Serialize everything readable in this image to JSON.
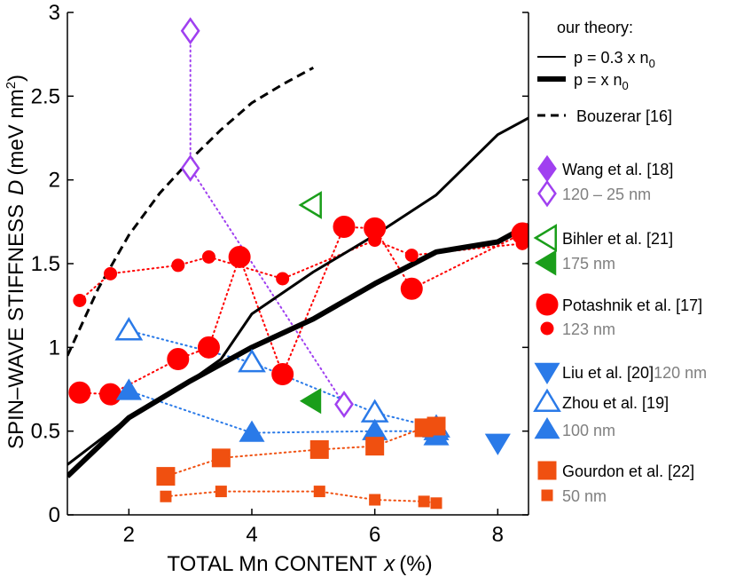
{
  "chart_data": {
    "type": "scatter",
    "xlabel": {
      "main": "TOTAL Mn CONTENT",
      "var": "x",
      "unit": "(%)"
    },
    "ylabel": {
      "main": "SPIN–WAVE STIFFNESS",
      "var": "D",
      "unit_pre": "(meV nm",
      "unit_sup": "2",
      "unit_post": ")"
    },
    "xlim": [
      1,
      8.5
    ],
    "ylim": [
      0,
      3
    ],
    "xticks": [
      2,
      4,
      6,
      8
    ],
    "yticks": [
      0,
      0.5,
      1,
      1.5,
      2,
      2.5,
      3
    ],
    "ytick_labels": [
      "0",
      "0.5",
      "1",
      "1.5",
      "2",
      "2.5",
      "3"
    ],
    "xtick_labels": [
      "2",
      "4",
      "6",
      "8"
    ],
    "lines": [
      {
        "name": "p = 0.3 x n0",
        "style": "thin",
        "color": "#000000",
        "x": [
          1.0,
          2.0,
          3.0,
          3.5,
          4.0,
          5.0,
          6.0,
          7.0,
          8.0,
          8.5
        ],
        "y": [
          0.3,
          0.58,
          0.8,
          0.93,
          1.2,
          1.45,
          1.67,
          1.91,
          2.27,
          2.37
        ]
      },
      {
        "name": "p = x n0",
        "style": "thick",
        "color": "#000000",
        "x": [
          1.0,
          2.0,
          3.0,
          4.0,
          5.0,
          6.0,
          7.0,
          8.0,
          8.5
        ],
        "y": [
          0.23,
          0.58,
          0.8,
          1.0,
          1.17,
          1.38,
          1.57,
          1.63,
          1.73
        ]
      },
      {
        "name": "Bouzerar [16]",
        "style": "dashed",
        "color": "#000000",
        "x": [
          1.0,
          1.5,
          2.0,
          2.5,
          3.0,
          3.5,
          4.0,
          4.5,
          5.0
        ],
        "y": [
          0.95,
          1.35,
          1.67,
          1.92,
          2.12,
          2.3,
          2.46,
          2.57,
          2.67
        ]
      }
    ],
    "series": [
      {
        "name": "Wang et al. [18]",
        "marker": "diamond",
        "fill": "filled",
        "color": "#a040f0",
        "size": 12,
        "connect": false,
        "x": [
          3.0
        ],
        "y": [
          2.89
        ]
      },
      {
        "name": "120 – 25 nm",
        "marker": "diamond",
        "fill": "open",
        "color": "#a040f0",
        "size": 11,
        "connect": true,
        "x": [
          3.0,
          3.0,
          5.5
        ],
        "y": [
          2.89,
          2.07,
          0.66
        ]
      },
      {
        "name": "Bihler et al. [21]",
        "marker": "triangle-left",
        "fill": "open",
        "color": "#1a9e1a",
        "size": 13,
        "connect": false,
        "x": [
          4.98
        ],
        "y": [
          1.85
        ]
      },
      {
        "name": "175 nm",
        "marker": "triangle-left",
        "fill": "filled",
        "color": "#1a9e1a",
        "size": 13,
        "connect": false,
        "x": [
          4.98
        ],
        "y": [
          0.68
        ]
      },
      {
        "name": "Potashnik et al. [17]",
        "marker": "circle",
        "fill": "filled",
        "color": "#ff0000",
        "size": 12,
        "connect": true,
        "x": [
          1.2,
          1.7,
          2.8,
          3.3,
          3.8,
          4.5,
          5.5,
          6.0,
          6.6,
          8.4
        ],
        "y": [
          0.73,
          0.72,
          0.93,
          1.0,
          1.54,
          0.84,
          1.72,
          1.71,
          1.35,
          1.68
        ]
      },
      {
        "name": "123 nm",
        "marker": "circle",
        "fill": "filled",
        "color": "#ff0000",
        "size": 7,
        "connect": true,
        "x": [
          1.2,
          1.7,
          2.8,
          3.3,
          4.5,
          6.0,
          6.6,
          8.4
        ],
        "y": [
          1.28,
          1.44,
          1.49,
          1.54,
          1.41,
          1.64,
          1.55,
          1.62
        ]
      },
      {
        "name": "Liu et al. [20]",
        "marker": "triangle-down",
        "fill": "filled",
        "color": "#2a7ae8",
        "size": 13,
        "connect": false,
        "x": [
          8.0
        ],
        "y": [
          0.43
        ]
      },
      {
        "name": "Zhou et al. [19]",
        "marker": "triangle-up",
        "fill": "open",
        "color": "#2a7ae8",
        "size": 13,
        "connect": true,
        "x": [
          2.0,
          4.0,
          6.0,
          7.0
        ],
        "y": [
          1.1,
          0.91,
          0.61,
          0.52
        ]
      },
      {
        "name": "100 nm",
        "marker": "triangle-up",
        "fill": "filled",
        "color": "#2a7ae8",
        "size": 13,
        "connect": true,
        "x": [
          2.0,
          4.0,
          6.0,
          7.0,
          7.0
        ],
        "y": [
          0.74,
          0.49,
          0.5,
          0.5,
          0.47
        ]
      },
      {
        "name": "Gourdon et al. [22]",
        "marker": "square",
        "fill": "filled",
        "color": "#f05010",
        "size": 10,
        "connect": true,
        "x": [
          2.6,
          3.5,
          5.1,
          6.0,
          6.8,
          7.0
        ],
        "y": [
          0.23,
          0.34,
          0.39,
          0.41,
          0.52,
          0.53
        ]
      },
      {
        "name": "50 nm",
        "marker": "square",
        "fill": "filled",
        "color": "#f05010",
        "size": 6,
        "connect": true,
        "x": [
          2.6,
          3.5,
          5.1,
          6.0,
          6.8,
          7.0
        ],
        "y": [
          0.11,
          0.14,
          0.14,
          0.09,
          0.08,
          0.07
        ]
      }
    ],
    "legend": {
      "heading": "our theory:",
      "line1": {
        "pre": "p = 0.3 x n",
        "sub": "0"
      },
      "line2": {
        "pre": "p = x n",
        "sub": "0"
      },
      "line3": "Bouzerar [16]",
      "wang": "Wang et al. [18]",
      "wang_sub": "120 – 25 nm",
      "bihler": "Bihler et al. [21]",
      "bihler_sub": "175 nm",
      "potashnik": "Potashnik et al. [17]",
      "potashnik_sub": "123 nm",
      "liu": "Liu et al. [20]",
      "liu_sub": "120 nm",
      "zhou": "Zhou et al. [19]",
      "zhou_sub": "100 nm",
      "gourdon": "Gourdon et al. [22]",
      "gourdon_sub": "50 nm"
    }
  }
}
